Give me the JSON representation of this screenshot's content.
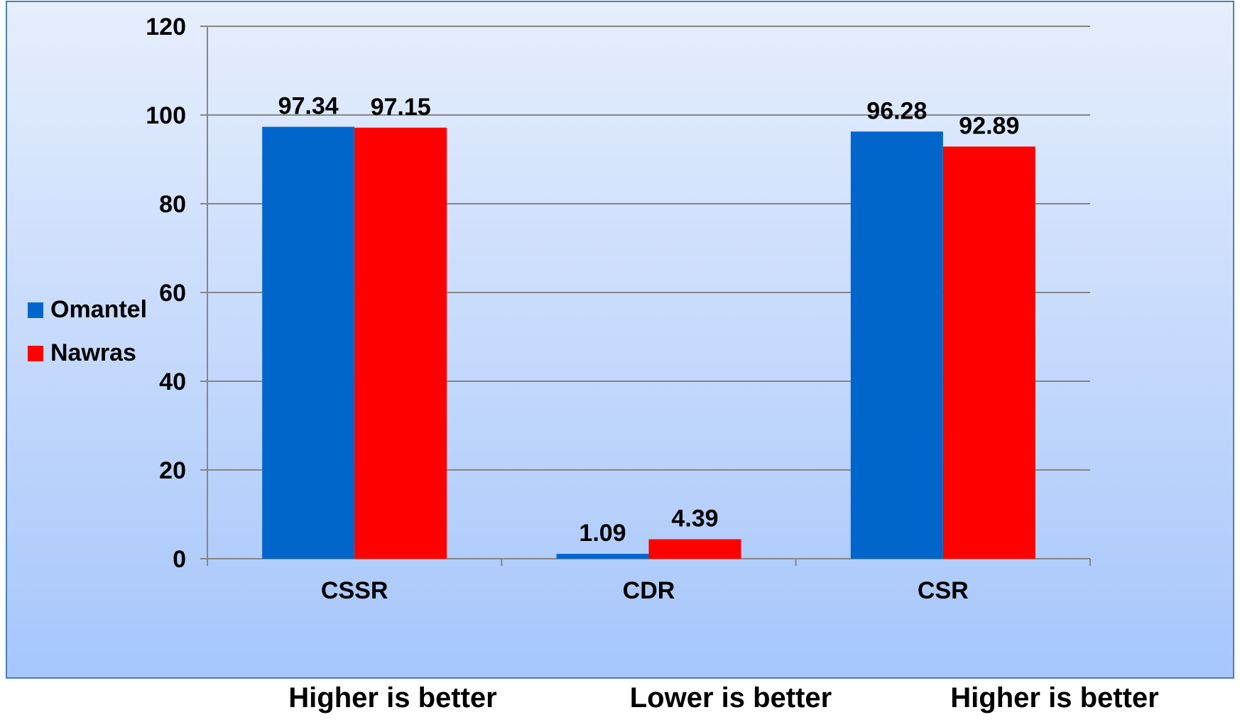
{
  "chart_data": {
    "type": "bar",
    "categories": [
      "CSSR",
      "CDR",
      "CSR"
    ],
    "series": [
      {
        "name": "Omantel",
        "color": "#0066CC",
        "values": [
          97.34,
          1.09,
          96.28
        ]
      },
      {
        "name": "Nawras",
        "color": "#FF0000",
        "values": [
          97.15,
          4.39,
          92.89
        ]
      }
    ],
    "data_labels": [
      [
        "97.34",
        "1.09",
        "96.28"
      ],
      [
        "97.15",
        "4.39",
        "92.89"
      ]
    ],
    "ylim": [
      0,
      120
    ],
    "yticks": [
      "0",
      "20",
      "40",
      "60",
      "80",
      "100",
      "120"
    ],
    "grid": true,
    "legend_position": "left",
    "background_gradient": [
      "#E6EEFC",
      "#A6C6FB"
    ],
    "notes": [
      "Higher is better",
      "Lower is better",
      "Higher is better"
    ]
  }
}
